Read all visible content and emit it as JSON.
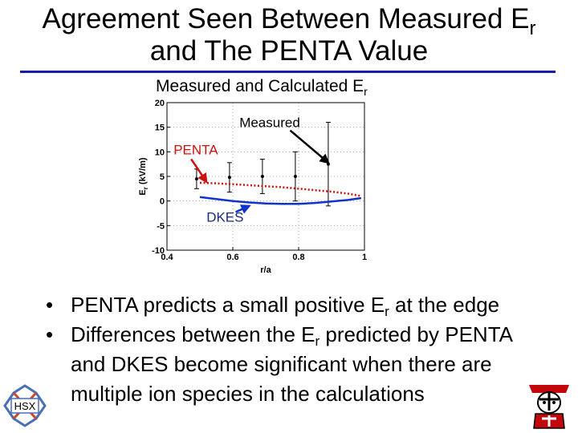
{
  "slide": {
    "title_line1": "Agreement Seen Between Measured E",
    "title_sub": "r",
    "title_line2": "and The PENTA Value",
    "bullets": [
      {
        "pre": "PENTA predicts a small positive E",
        "sub": "r",
        "post": " at the edge",
        "rest": []
      },
      {
        "pre": "Differences between the E",
        "sub": "r",
        "post": " predicted by PENTA",
        "rest": [
          "and DKES become significant when there are",
          "multiple ion species in the calculations"
        ]
      }
    ],
    "bullet_glyph": "•",
    "logos": {
      "left": "HSX",
      "right": "Wisconsin badger mascot"
    }
  },
  "chart_data": {
    "type": "line",
    "title": "Measured and Calculated E",
    "title_sub": "r",
    "xlabel": "r/a",
    "ylabel": "E",
    "ylabel_sub": "r",
    "ylabel_unit": " (kV/m)",
    "xlim": [
      0.4,
      1.0
    ],
    "ylim": [
      -10,
      20
    ],
    "xticks": [
      0.4,
      0.6,
      0.8,
      1.0
    ],
    "xtick_labels": [
      "0.4",
      "0.6",
      "0.8",
      "1"
    ],
    "yticks": [
      -10,
      -5,
      0,
      5,
      10,
      15,
      20
    ],
    "ytick_labels": [
      "-10",
      "-5",
      "0",
      "5",
      "10",
      "15",
      "20"
    ],
    "grid": true,
    "series": [
      {
        "name": "Measured",
        "style": "errorbar",
        "color": "#000000",
        "x": [
          0.49,
          0.59,
          0.69,
          0.79,
          0.89
        ],
        "y": [
          4.5,
          4.8,
          5.0,
          5.0,
          7.5
        ],
        "err_low": [
          2.0,
          3.0,
          3.5,
          5.0,
          8.5
        ],
        "err_high": [
          2.0,
          3.0,
          3.5,
          5.0,
          8.5
        ]
      },
      {
        "name": "PENTA",
        "style": "dotted",
        "color": "#cc1111",
        "x": [
          0.5,
          0.55,
          0.6,
          0.65,
          0.7,
          0.75,
          0.8,
          0.85,
          0.9,
          0.95,
          0.99
        ],
        "y": [
          3.7,
          3.6,
          3.4,
          3.2,
          3.0,
          2.8,
          2.5,
          2.2,
          1.9,
          1.5,
          1.0
        ]
      },
      {
        "name": "DKES",
        "style": "solid",
        "color": "#1133cc",
        "x": [
          0.5,
          0.55,
          0.6,
          0.65,
          0.7,
          0.75,
          0.8,
          0.85,
          0.9,
          0.95,
          0.99
        ],
        "y": [
          0.8,
          0.4,
          0.0,
          -0.3,
          -0.5,
          -0.6,
          -0.6,
          -0.4,
          -0.1,
          0.2,
          0.6
        ]
      }
    ],
    "annotations": [
      {
        "text": "Measured",
        "color": "#000000",
        "text_at": [
          0.62,
          15.0
        ],
        "arrow_to": [
          0.89,
          7.8
        ]
      },
      {
        "text": "PENTA",
        "color": "#cc1111",
        "text_at": [
          0.42,
          9.5
        ],
        "arrow_to": [
          0.52,
          3.9
        ]
      },
      {
        "text": "DKES",
        "color": "#1133cc",
        "text_at": [
          0.52,
          -4.2
        ],
        "arrow_to": [
          0.65,
          -1.0
        ]
      }
    ]
  }
}
